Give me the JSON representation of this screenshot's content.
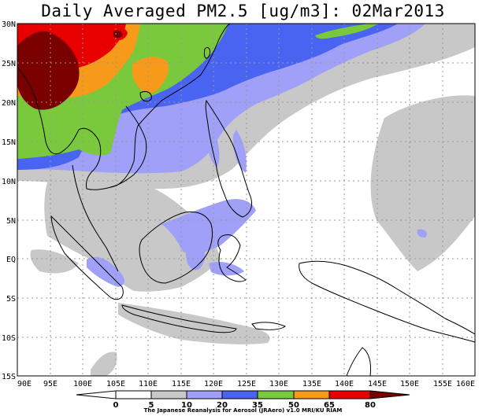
{
  "title": "Daily Averaged PM2.5 [ug/m3]: 02Mar2013",
  "lat_labels": [
    "30N",
    "25N",
    "20N",
    "15N",
    "10N",
    "5N",
    "EQ",
    "5S",
    "10S",
    "15S"
  ],
  "lon_labels": [
    "90E",
    "95E",
    "100E",
    "105E",
    "110E",
    "115E",
    "120E",
    "125E",
    "130E",
    "135E",
    "140E",
    "145E",
    "150E",
    "155E",
    "160E"
  ],
  "colorbar": {
    "ticks": [
      "0",
      "5",
      "10",
      "20",
      "35",
      "50",
      "65",
      "80"
    ],
    "colors": [
      "#ffffff",
      "#c8c8c8",
      "#a0a0f8",
      "#4a64f2",
      "#7ac83c",
      "#f79a1a",
      "#e80000",
      "#7a0000"
    ]
  },
  "credit": "The Japanese Reanalysis for Aerosol (JRAero) v1.0 MRI/KU RIAM",
  "chart_data": {
    "type": "heatmap",
    "title": "Daily Averaged PM2.5 [ug/m3]: 02Mar2013",
    "xlim": [
      90,
      160
    ],
    "ylim": [
      -15,
      30
    ],
    "levels": [
      0,
      5,
      10,
      20,
      35,
      50,
      65,
      80
    ],
    "grid": true
  }
}
